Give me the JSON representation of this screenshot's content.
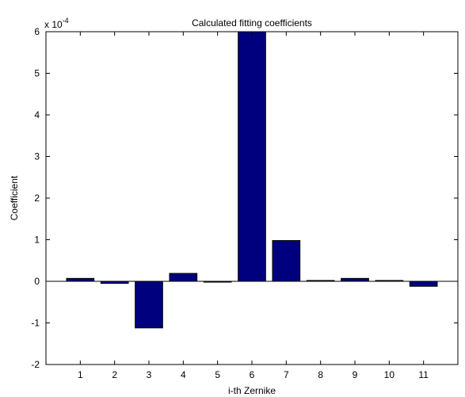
{
  "chart_data": {
    "type": "bar",
    "title": "Calculated fitting coefficients",
    "xlabel": "i-th Zernike",
    "ylabel": "Coefficient",
    "exponent_label": "x 10",
    "exponent_power": "-4",
    "categories": [
      "1",
      "2",
      "3",
      "4",
      "5",
      "6",
      "7",
      "8",
      "9",
      "10",
      "11"
    ],
    "values": [
      0.07,
      -0.05,
      -1.12,
      0.19,
      -0.02,
      6.0,
      0.98,
      0.02,
      0.07,
      0.02,
      -0.12
    ],
    "value_scale": "1e-4",
    "xlim": [
      0,
      12
    ],
    "ylim": [
      -2,
      6
    ],
    "yticks": [
      "-2",
      "-1",
      "0",
      "1",
      "2",
      "3",
      "4",
      "5",
      "6"
    ],
    "grid": false,
    "bar_color": "#00007f",
    "bar_edge_color": "#000000"
  }
}
